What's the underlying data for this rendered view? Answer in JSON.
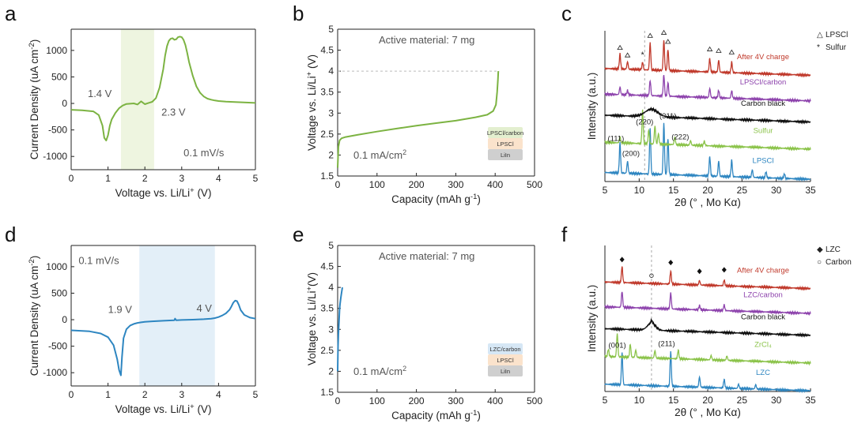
{
  "chart_data": [
    {
      "id": "a",
      "panel_label": "a",
      "type": "line",
      "xlabel_pre": "Voltage vs. Li/Li",
      "xlabel_sup": "+",
      "xlabel_post": " (V)",
      "ylabel_pre": "Current Density (uA cm",
      "ylabel_sup": "-2",
      "ylabel_post": ")",
      "xlim": [
        0,
        5
      ],
      "ylim": [
        -1250,
        1400
      ],
      "xticks": [
        0,
        1,
        2,
        3,
        4,
        5
      ],
      "yticks": [
        -1000,
        -500,
        0,
        500,
        1000
      ],
      "color": "#7cb342",
      "shade": {
        "x0": 1.35,
        "x1": 2.25,
        "color": "#eef5e0"
      },
      "annotations": [
        {
          "text": "1.4 V",
          "x": 0.45,
          "y": 120
        },
        {
          "text": "2.3 V",
          "x": 2.45,
          "y": -230
        },
        {
          "text": "0.1 mV/s",
          "x": 3.05,
          "y": -1000
        }
      ],
      "series": [
        {
          "name": "CV",
          "x": [
            0,
            0.3,
            0.6,
            0.75,
            0.85,
            0.9,
            0.95,
            1.0,
            1.05,
            1.1,
            1.2,
            1.3,
            1.4,
            1.5,
            1.7,
            1.8,
            1.9,
            2.0,
            2.1,
            2.2,
            2.3,
            2.4,
            2.5,
            2.55,
            2.6,
            2.65,
            2.7,
            2.75,
            2.8,
            2.85,
            2.9,
            2.95,
            3.0,
            3.05,
            3.1,
            3.15,
            3.2,
            3.3,
            3.4,
            3.5,
            3.6,
            3.7,
            3.8,
            3.9,
            4.0,
            4.2,
            4.5,
            5.0
          ],
          "y": [
            -120,
            -130,
            -150,
            -220,
            -420,
            -650,
            -700,
            -600,
            -420,
            -300,
            -180,
            -90,
            -40,
            -10,
            0,
            -20,
            40,
            -15,
            10,
            30,
            100,
            300,
            650,
            900,
            1080,
            1180,
            1220,
            1230,
            1200,
            1210,
            1250,
            1260,
            1250,
            1200,
            1100,
            950,
            780,
            520,
            320,
            200,
            130,
            90,
            70,
            55,
            45,
            35,
            25,
            10
          ]
        }
      ]
    },
    {
      "id": "b",
      "panel_label": "b",
      "type": "line",
      "xlabel_pre": "Capacity (mAh g",
      "xlabel_sup": "-1",
      "xlabel_post": ")",
      "ylabel_pre": "Voltage vs. Li/Li",
      "ylabel_sup": "+",
      "ylabel_post": " (V)",
      "xlim": [
        0,
        500
      ],
      "ylim": [
        1.5,
        5
      ],
      "xticks": [
        0,
        100,
        200,
        300,
        400,
        500
      ],
      "yticks": [
        1.5,
        2,
        2.5,
        3,
        3.5,
        4,
        4.5,
        5
      ],
      "color": "#7cb342",
      "title_text": "Active material: 7 mg",
      "rate_pre": "0.1 mA/cm",
      "rate_sup": "2",
      "cutoff_line": 4.0,
      "stack": [
        "LPSCl/carbon",
        "LPSCl",
        "LiIn"
      ],
      "stack_colors": [
        "#e3efcf",
        "#fbe3cc",
        "#cfcfcf"
      ],
      "series": [
        {
          "name": "charge",
          "x": [
            0,
            2,
            5,
            10,
            20,
            50,
            100,
            150,
            200,
            250,
            300,
            350,
            380,
            395,
            402,
            405,
            407,
            408
          ],
          "y": [
            1.7,
            2.2,
            2.35,
            2.4,
            2.43,
            2.48,
            2.56,
            2.63,
            2.7,
            2.76,
            2.82,
            2.9,
            2.96,
            3.05,
            3.2,
            3.5,
            3.8,
            4.0
          ]
        }
      ]
    },
    {
      "id": "c",
      "panel_label": "c",
      "type": "line",
      "xlabel_main": "2θ (° , Mo Kα)",
      "ylabel": "Intensity (a.u.)",
      "xlim": [
        5,
        35
      ],
      "xticks": [
        5,
        10,
        15,
        20,
        25,
        30,
        35
      ],
      "dashed_x": 10.8,
      "traces": [
        {
          "name": "LPSCl",
          "color": "#2e86c1",
          "base": 0.06,
          "peaks": [
            [
              7.2,
              0.2
            ],
            [
              8.3,
              0.08
            ],
            [
              11.6,
              0.3
            ],
            [
              13.6,
              0.34
            ],
            [
              14.2,
              0.24
            ],
            [
              20.3,
              0.13
            ],
            [
              21.6,
              0.1
            ],
            [
              23.5,
              0.11
            ],
            [
              26.5,
              0.05
            ],
            [
              28.5,
              0.04
            ],
            [
              31.2,
              0.03
            ]
          ]
        },
        {
          "name": "Sulfur",
          "color": "#8bc34a",
          "base": 0.26,
          "peaks": [
            [
              7.2,
              0.04
            ],
            [
              10.5,
              0.22
            ],
            [
              11.4,
              0.09
            ],
            [
              12.3,
              0.12
            ],
            [
              12.8,
              0.07
            ],
            [
              15.2,
              0.05
            ],
            [
              17.5,
              0.03
            ],
            [
              19.5,
              0.03
            ]
          ]
        },
        {
          "name": "Carbon black",
          "color": "#111111",
          "base": 0.44,
          "peaks": [],
          "hump": [
            11.8,
            0.05,
            1.3
          ]
        },
        {
          "name": "LPSCl/carbon",
          "color": "#8e44ad",
          "base": 0.58,
          "peaks": [
            [
              7.2,
              0.05
            ],
            [
              8.3,
              0.03
            ],
            [
              11.6,
              0.1
            ],
            [
              13.6,
              0.14
            ],
            [
              14.2,
              0.09
            ],
            [
              20.3,
              0.06
            ],
            [
              21.6,
              0.05
            ],
            [
              23.5,
              0.05
            ]
          ]
        },
        {
          "name": "After 4V charge",
          "color": "#c0392b",
          "base": 0.75,
          "peaks": [
            [
              7.2,
              0.1
            ],
            [
              8.3,
              0.05
            ],
            [
              10.5,
              0.05
            ],
            [
              11.6,
              0.18
            ],
            [
              13.6,
              0.2
            ],
            [
              14.2,
              0.14
            ],
            [
              20.3,
              0.09
            ],
            [
              21.6,
              0.08
            ],
            [
              23.5,
              0.07
            ]
          ]
        }
      ],
      "legend": [
        {
          "symbol": "△",
          "label": "LPSCl"
        },
        {
          "symbol": "*",
          "label": "Sulfur"
        }
      ],
      "markers_triangle": [
        7.2,
        8.3,
        11.6,
        13.6,
        14.2,
        20.3,
        21.6,
        23.5
      ],
      "markers_star": [
        10.5
      ],
      "hkl": [
        {
          "text": "(111)",
          "x": 6.6,
          "y": 0.27
        },
        {
          "text": "(200)",
          "x": 8.8,
          "y": 0.17
        },
        {
          "text": "(220)",
          "x": 10.8,
          "y": 0.38
        },
        {
          "text": "(311)",
          "x": 14.2,
          "y": 0.42
        },
        {
          "text": "(222)",
          "x": 16.0,
          "y": 0.28
        }
      ]
    },
    {
      "id": "d",
      "panel_label": "d",
      "type": "line",
      "xlabel_pre": "Voltage vs. Li/Li",
      "xlabel_sup": "+",
      "xlabel_post": " (V)",
      "ylabel_pre": "Current Density (uA cm",
      "ylabel_sup": "-2",
      "ylabel_post": ")",
      "xlim": [
        0,
        5
      ],
      "ylim": [
        -1250,
        1400
      ],
      "xticks": [
        0,
        1,
        2,
        3,
        4,
        5
      ],
      "yticks": [
        -1000,
        -500,
        0,
        500,
        1000
      ],
      "color": "#2e86c1",
      "shade": {
        "x0": 1.85,
        "x1": 3.9,
        "color": "#e3eff8"
      },
      "annotations": [
        {
          "text": "0.1 mV/s",
          "x": 0.2,
          "y": 1050
        },
        {
          "text": "1.9 V",
          "x": 1.0,
          "y": 130
        },
        {
          "text": "4 V",
          "x": 3.4,
          "y": 150
        }
      ],
      "series": [
        {
          "name": "CV",
          "x": [
            0,
            0.5,
            0.8,
            1.0,
            1.15,
            1.25,
            1.3,
            1.35,
            1.38,
            1.42,
            1.5,
            1.6,
            1.7,
            1.8,
            1.9,
            2.0,
            2.2,
            2.5,
            2.8,
            2.82,
            2.85,
            3.0,
            3.3,
            3.6,
            3.8,
            3.9,
            4.0,
            4.1,
            4.2,
            4.3,
            4.35,
            4.4,
            4.45,
            4.5,
            4.55,
            4.6,
            4.7,
            4.85,
            5.0
          ],
          "y": [
            -200,
            -220,
            -260,
            -330,
            -480,
            -750,
            -950,
            -1050,
            -700,
            -350,
            -180,
            -110,
            -80,
            -60,
            -50,
            -40,
            -30,
            -20,
            -10,
            20,
            -10,
            -5,
            0,
            10,
            20,
            30,
            50,
            80,
            120,
            190,
            250,
            320,
            360,
            350,
            280,
            180,
            90,
            40,
            20
          ]
        }
      ]
    },
    {
      "id": "e",
      "panel_label": "e",
      "type": "line",
      "xlabel_pre": "Capacity (mAh g",
      "xlabel_sup": "-1",
      "xlabel_post": ")",
      "ylabel_pre": "Voltage vs. Li/Li",
      "ylabel_sup": "+",
      "ylabel_post": "(V)",
      "xlim": [
        0,
        500
      ],
      "ylim": [
        1.5,
        5
      ],
      "xticks": [
        0,
        100,
        200,
        300,
        400,
        500
      ],
      "yticks": [
        1.5,
        2,
        2.5,
        3,
        3.5,
        4,
        4.5,
        5
      ],
      "color": "#2e86c1",
      "title_text": "Active material: 7 mg",
      "rate_pre": "0.1 mA/cm",
      "rate_sup": "2",
      "stack": [
        "LZC/carbon",
        "LPSCl",
        "LiIn"
      ],
      "stack_colors": [
        "#d6e7f5",
        "#fbe3cc",
        "#cfcfcf"
      ],
      "series": [
        {
          "name": "charge",
          "x": [
            0,
            1,
            2,
            3,
            4,
            5,
            6,
            8,
            10,
            12
          ],
          "y": [
            2.0,
            2.6,
            2.9,
            3.1,
            3.3,
            3.5,
            3.6,
            3.75,
            3.88,
            4.0
          ]
        }
      ]
    },
    {
      "id": "f",
      "panel_label": "f",
      "type": "line",
      "xlabel_main": "2θ (° , Mo Kα)",
      "ylabel": "Intensity (a.u.)",
      "xlim": [
        5,
        35
      ],
      "xticks": [
        5,
        10,
        15,
        20,
        25,
        30,
        35
      ],
      "dashed_x": 11.8,
      "traces": [
        {
          "name": "LZC",
          "color": "#2e86c1",
          "base": 0.05,
          "peaks": [
            [
              7.5,
              0.22
            ],
            [
              14.6,
              0.24
            ],
            [
              18.8,
              0.07
            ],
            [
              22.4,
              0.06
            ],
            [
              24.5,
              0.03
            ],
            [
              27.0,
              0.03
            ]
          ]
        },
        {
          "name": "ZrCl₄",
          "color": "#8bc34a",
          "base": 0.24,
          "peaks": [
            [
              5.5,
              0.05
            ],
            [
              6.8,
              0.16
            ],
            [
              8.7,
              0.09
            ],
            [
              9.5,
              0.05
            ],
            [
              12.3,
              0.05
            ],
            [
              15.7,
              0.06
            ],
            [
              20.5,
              0.03
            ],
            [
              22.8,
              0.03
            ]
          ]
        },
        {
          "name": "Carbon black",
          "color": "#111111",
          "base": 0.43,
          "peaks": [
            [
              11.8,
              0.02
            ]
          ],
          "hump": [
            11.8,
            0.05,
            0.8
          ]
        },
        {
          "name": "LZC/carbon",
          "color": "#8e44ad",
          "base": 0.58,
          "peaks": [
            [
              7.5,
              0.11
            ],
            [
              14.6,
              0.11
            ],
            [
              18.8,
              0.03
            ],
            [
              22.4,
              0.04
            ]
          ]
        },
        {
          "name": "After 4V charge",
          "color": "#c0392b",
          "base": 0.75,
          "peaks": [
            [
              7.5,
              0.11
            ],
            [
              14.6,
              0.09
            ],
            [
              18.8,
              0.03
            ],
            [
              22.4,
              0.04
            ]
          ]
        }
      ],
      "legend": [
        {
          "symbol": "◆",
          "label": "LZC"
        },
        {
          "symbol": "○",
          "label": "Carbon"
        }
      ],
      "markers_diamond": [
        7.5,
        14.6,
        18.8,
        22.4
      ],
      "markers_circle": [
        11.8
      ],
      "hkl": [
        {
          "text": "(001)",
          "x": 6.8,
          "y": 0.3
        },
        {
          "text": "(211)",
          "x": 14.0,
          "y": 0.31
        }
      ]
    }
  ]
}
